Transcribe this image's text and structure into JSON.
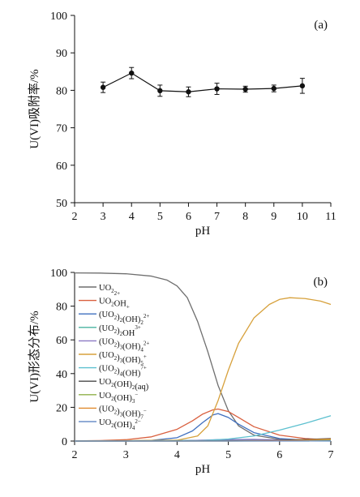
{
  "chart_data": [
    {
      "type": "scatter",
      "panel_label": "(a)",
      "xlabel": "pH",
      "ylabel": "U(VI)吸附率/%",
      "xlim": [
        2,
        11
      ],
      "ylim": [
        50,
        100
      ],
      "xticks": [
        2,
        3,
        4,
        5,
        6,
        7,
        8,
        9,
        10,
        11
      ],
      "yticks": [
        50,
        60,
        70,
        80,
        90,
        100
      ],
      "series": [
        {
          "x": [
            3,
            4,
            5,
            6,
            7,
            8,
            9,
            10
          ],
          "y": [
            80.8,
            84.6,
            79.9,
            79.6,
            80.4,
            80.3,
            80.5,
            81.2
          ],
          "error": [
            1.4,
            1.5,
            1.5,
            1.3,
            1.5,
            0.8,
            0.9,
            2.0
          ],
          "color": "#111111"
        }
      ]
    },
    {
      "type": "line",
      "panel_label": "(b)",
      "xlabel": "pH",
      "ylabel": "U(VI)形态分布/%",
      "xlim": [
        2,
        7
      ],
      "ylim": [
        0,
        100
      ],
      "xticks": [
        2,
        3,
        4,
        5,
        6,
        7
      ],
      "yticks": [
        0,
        20,
        40,
        60,
        80,
        100
      ],
      "legend_position": "top-left",
      "series": [
        {
          "name": "UO2 2+",
          "color": "#6e6e6e",
          "legend": [
            "UO",
            "2",
            "",
            "2+"
          ],
          "x": [
            2,
            2.5,
            3,
            3.5,
            3.8,
            4,
            4.2,
            4.4,
            4.6,
            4.8,
            5,
            5.2,
            5.5,
            6,
            6.5,
            7
          ],
          "y": [
            99.7,
            99.6,
            99.2,
            97.8,
            95.5,
            92,
            85,
            71,
            53,
            33,
            18,
            9,
            3.5,
            1,
            0.5,
            0.3
          ]
        },
        {
          "name": "UO2OH+",
          "color": "#d9603f",
          "legend": [
            "UO",
            "2",
            "OH",
            "+"
          ],
          "x": [
            2,
            2.5,
            3,
            3.5,
            4,
            4.3,
            4.5,
            4.7,
            4.8,
            5,
            5.2,
            5.5,
            6,
            6.5,
            7
          ],
          "y": [
            0.1,
            0.3,
            0.8,
            2.5,
            7,
            12,
            16,
            18.5,
            19,
            17.5,
            14,
            8.5,
            3.5,
            1.5,
            0.7
          ]
        },
        {
          "name": "(UO2)2(OH)2 2+",
          "color": "#3f6fbf",
          "legend": [
            "(UO",
            "2",
            ")",
            "2",
            "(OH)",
            "2",
            "",
            "2+"
          ],
          "x": [
            2,
            3,
            3.5,
            4,
            4.3,
            4.5,
            4.7,
            4.8,
            5,
            5.2,
            5.5,
            6,
            6.5,
            7
          ],
          "y": [
            0,
            0.1,
            0.4,
            2,
            6,
            11,
            15.5,
            16.3,
            14,
            10,
            5,
            1.5,
            0.5,
            0.1
          ]
        },
        {
          "name": "(UO2)2OH 3+",
          "color": "#49b3a0",
          "legend": [
            "(UO",
            "2",
            ")",
            "2",
            "OH",
            "",
            "",
            "3+"
          ],
          "x": [
            2,
            3,
            4,
            4.8,
            5.5,
            6,
            7
          ],
          "y": [
            0,
            0,
            0.3,
            0.5,
            0.3,
            0.1,
            0
          ]
        },
        {
          "name": "(UO2)3(OH)4 2+",
          "color": "#8b79c4",
          "legend": [
            "(UO",
            "2",
            ")",
            "3",
            "(OH)",
            "4",
            "",
            "2+"
          ],
          "x": [
            2,
            4,
            4.8,
            5.5,
            6,
            7
          ],
          "y": [
            0,
            0.1,
            0.8,
            1,
            0.6,
            0.2
          ]
        },
        {
          "name": "(UO2)3(OH)5 +",
          "color": "#d7a13c",
          "legend": [
            "(UO",
            "2",
            ")",
            "3",
            "(OH)",
            "5",
            "",
            "+"
          ],
          "x": [
            2,
            4,
            4.4,
            4.6,
            4.8,
            5,
            5.2,
            5.5,
            5.8,
            6,
            6.2,
            6.5,
            6.8,
            7
          ],
          "y": [
            0,
            0.5,
            3,
            9,
            24,
            42,
            58,
            73,
            81,
            84,
            85,
            84.5,
            83,
            81
          ]
        },
        {
          "name": "(UO2)4(OH)7 +",
          "color": "#5cc0cf",
          "legend": [
            "(UO",
            "2",
            ")",
            "4",
            "(OH)",
            "",
            "",
            "7+"
          ],
          "x": [
            2,
            4.5,
            5,
            5.5,
            6,
            6.5,
            7
          ],
          "y": [
            0,
            0.3,
            1.2,
            3,
            6.5,
            10.5,
            15
          ]
        },
        {
          "name": "UO2(OH)2(aq)",
          "color": "#4a4a4a",
          "legend": [
            "UO",
            "2",
            "(OH)",
            "2",
            "(aq)",
            "",
            "",
            ""
          ],
          "x": [
            2,
            4,
            5,
            6,
            7
          ],
          "y": [
            0,
            0,
            0.1,
            0.4,
            1.5
          ]
        },
        {
          "name": "UO2(OH)3 -",
          "color": "#8fb04a",
          "legend": [
            "UO",
            "2",
            "(OH)",
            "3",
            "",
            "",
            "",
            "−"
          ],
          "x": [
            2,
            5,
            6,
            7
          ],
          "y": [
            0,
            0,
            0.1,
            0.6
          ]
        },
        {
          "name": "(UO2)3(OH)7 -",
          "color": "#e08a2e",
          "legend": [
            "(UO",
            "2",
            ")",
            "3",
            "(OH)",
            "7",
            "",
            "−"
          ],
          "x": [
            2,
            5,
            6,
            6.5,
            7
          ],
          "y": [
            0,
            0,
            0.2,
            0.6,
            1.2
          ]
        },
        {
          "name": "UO2(OH)4 2-",
          "color": "#6d8fc9",
          "legend": [
            "UO",
            "2",
            "(OH)",
            "4",
            "",
            "",
            "",
            "2−"
          ],
          "x": [
            2,
            6,
            7
          ],
          "y": [
            0,
            0,
            0.1
          ]
        }
      ]
    }
  ]
}
